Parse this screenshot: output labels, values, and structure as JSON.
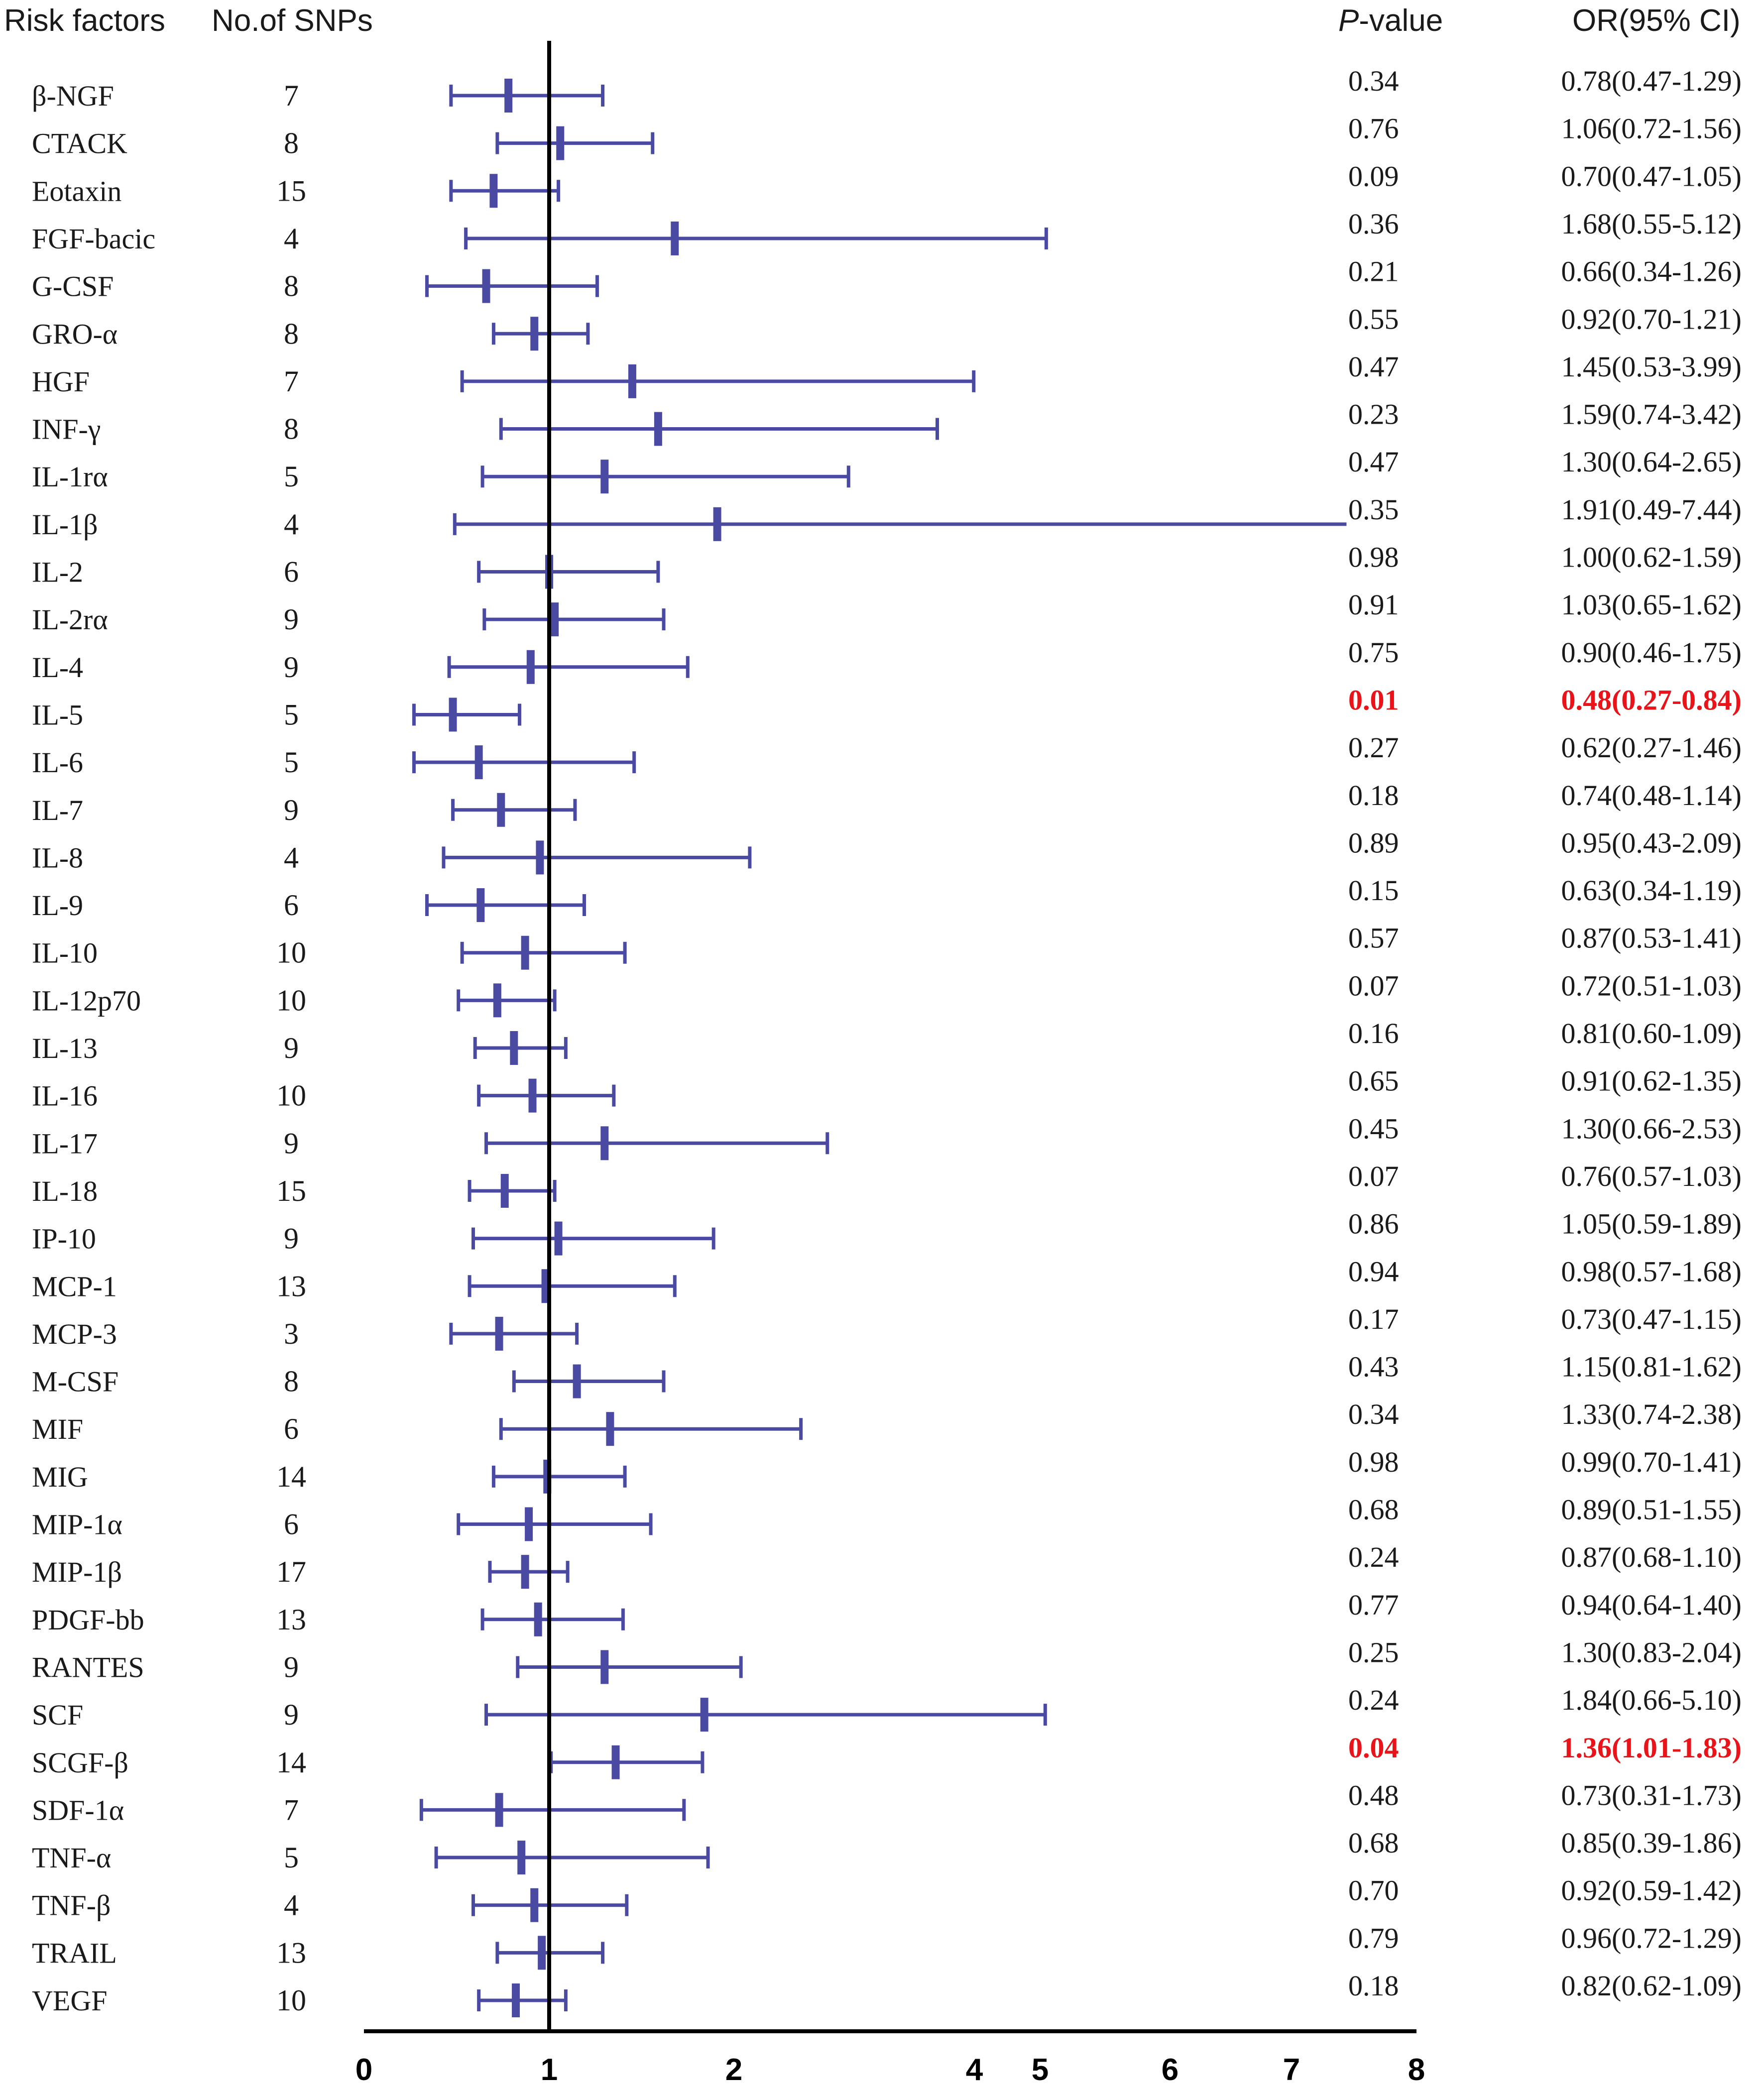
{
  "chart_data": {
    "type": "forest",
    "headers": {
      "factor": "Risk factors",
      "nsnps": "No.of SNPs",
      "pvalue_italic": "P",
      "pvalue_rest": "-value",
      "or": "OR(95% CI)"
    },
    "x_ticks": [
      "0",
      "1",
      "2",
      "4",
      "5",
      "6",
      "7",
      "8"
    ],
    "reference_value": 1,
    "axis_segments": [
      [
        0,
        2.7
      ],
      [
        2.7,
        5.3
      ],
      [
        5.3,
        8
      ]
    ],
    "colors": {
      "marker": "#4b4aa3",
      "significant": "#e8141a",
      "text": "#1a1a1a"
    },
    "rows": [
      {
        "factor": "β-NGF",
        "nsnps": "7",
        "p": "0.34",
        "or_text": "0.78(0.47-1.29)",
        "or": 0.78,
        "lo": 0.47,
        "hi": 1.29,
        "sig": false
      },
      {
        "factor": "CTACK",
        "nsnps": "8",
        "p": "0.76",
        "or_text": "1.06(0.72-1.56)",
        "or": 1.06,
        "lo": 0.72,
        "hi": 1.56,
        "sig": false
      },
      {
        "factor": "Eotaxin",
        "nsnps": "15",
        "p": "0.09",
        "or_text": "0.70(0.47-1.05)",
        "or": 0.7,
        "lo": 0.47,
        "hi": 1.05,
        "sig": false
      },
      {
        "factor": "FGF-bacic",
        "nsnps": "4",
        "p": "0.36",
        "or_text": "1.68(0.55-5.12)",
        "or": 1.68,
        "lo": 0.55,
        "hi": 5.12,
        "sig": false
      },
      {
        "factor": "G-CSF",
        "nsnps": "8",
        "p": "0.21",
        "or_text": "0.66(0.34-1.26)",
        "or": 0.66,
        "lo": 0.34,
        "hi": 1.26,
        "sig": false
      },
      {
        "factor": "GRO-α",
        "nsnps": "8",
        "p": "0.55",
        "or_text": "0.92(0.70-1.21)",
        "or": 0.92,
        "lo": 0.7,
        "hi": 1.21,
        "sig": false
      },
      {
        "factor": "HGF",
        "nsnps": "7",
        "p": "0.47",
        "or_text": "1.45(0.53-3.99)",
        "or": 1.45,
        "lo": 0.53,
        "hi": 3.99,
        "sig": false
      },
      {
        "factor": "INF-γ",
        "nsnps": "8",
        "p": "0.23",
        "or_text": "1.59(0.74-3.42)",
        "or": 1.59,
        "lo": 0.74,
        "hi": 3.42,
        "sig": false
      },
      {
        "factor": "IL-1rα",
        "nsnps": "5",
        "p": "0.47",
        "or_text": "1.30(0.64-2.65)",
        "or": 1.3,
        "lo": 0.64,
        "hi": 2.65,
        "sig": false
      },
      {
        "factor": "IL-1β",
        "nsnps": "4",
        "p": "0.35",
        "or_text": "1.91(0.49-7.44)",
        "or": 1.91,
        "lo": 0.49,
        "hi": 7.44,
        "sig": false
      },
      {
        "factor": "IL-2",
        "nsnps": "6",
        "p": "0.98",
        "or_text": "1.00(0.62-1.59)",
        "or": 1.0,
        "lo": 0.62,
        "hi": 1.59,
        "sig": false
      },
      {
        "factor": "IL-2rα",
        "nsnps": "9",
        "p": "0.91",
        "or_text": "1.03(0.65-1.62)",
        "or": 1.03,
        "lo": 0.65,
        "hi": 1.62,
        "sig": false
      },
      {
        "factor": "IL-4",
        "nsnps": "9",
        "p": "0.75",
        "or_text": "0.90(0.46-1.75)",
        "or": 0.9,
        "lo": 0.46,
        "hi": 1.75,
        "sig": false
      },
      {
        "factor": "IL-5",
        "nsnps": "5",
        "p": "0.01",
        "or_text": "0.48(0.27-0.84)",
        "or": 0.48,
        "lo": 0.27,
        "hi": 0.84,
        "sig": true
      },
      {
        "factor": "IL-6",
        "nsnps": "5",
        "p": "0.27",
        "or_text": "0.62(0.27-1.46)",
        "or": 0.62,
        "lo": 0.27,
        "hi": 1.46,
        "sig": false
      },
      {
        "factor": "IL-7",
        "nsnps": "9",
        "p": "0.18",
        "or_text": "0.74(0.48-1.14)",
        "or": 0.74,
        "lo": 0.48,
        "hi": 1.14,
        "sig": false
      },
      {
        "factor": "IL-8",
        "nsnps": "4",
        "p": "0.89",
        "or_text": "0.95(0.43-2.09)",
        "or": 0.95,
        "lo": 0.43,
        "hi": 2.09,
        "sig": false
      },
      {
        "factor": "IL-9",
        "nsnps": "6",
        "p": "0.15",
        "or_text": "0.63(0.34-1.19)",
        "or": 0.63,
        "lo": 0.34,
        "hi": 1.19,
        "sig": false
      },
      {
        "factor": "IL-10",
        "nsnps": "10",
        "p": "0.57",
        "or_text": "0.87(0.53-1.41)",
        "or": 0.87,
        "lo": 0.53,
        "hi": 1.41,
        "sig": false
      },
      {
        "factor": "IL-12p70",
        "nsnps": "10",
        "p": "0.07",
        "or_text": "0.72(0.51-1.03)",
        "or": 0.72,
        "lo": 0.51,
        "hi": 1.03,
        "sig": false
      },
      {
        "factor": "IL-13",
        "nsnps": "9",
        "p": "0.16",
        "or_text": "0.81(0.60-1.09)",
        "or": 0.81,
        "lo": 0.6,
        "hi": 1.09,
        "sig": false
      },
      {
        "factor": "IL-16",
        "nsnps": "10",
        "p": "0.65",
        "or_text": "0.91(0.62-1.35)",
        "or": 0.91,
        "lo": 0.62,
        "hi": 1.35,
        "sig": false
      },
      {
        "factor": "IL-17",
        "nsnps": "9",
        "p": "0.45",
        "or_text": "1.30(0.66-2.53)",
        "or": 1.3,
        "lo": 0.66,
        "hi": 2.53,
        "sig": false
      },
      {
        "factor": "IL-18",
        "nsnps": "15",
        "p": "0.07",
        "or_text": "0.76(0.57-1.03)",
        "or": 0.76,
        "lo": 0.57,
        "hi": 1.03,
        "sig": false
      },
      {
        "factor": "IP-10",
        "nsnps": "9",
        "p": "0.86",
        "or_text": "1.05(0.59-1.89)",
        "or": 1.05,
        "lo": 0.59,
        "hi": 1.89,
        "sig": false
      },
      {
        "factor": "MCP-1",
        "nsnps": "13",
        "p": "0.94",
        "or_text": "0.98(0.57-1.68)",
        "or": 0.98,
        "lo": 0.57,
        "hi": 1.68,
        "sig": false
      },
      {
        "factor": "MCP-3",
        "nsnps": "3",
        "p": "0.17",
        "or_text": "0.73(0.47-1.15)",
        "or": 0.73,
        "lo": 0.47,
        "hi": 1.15,
        "sig": false
      },
      {
        "factor": "M-CSF",
        "nsnps": "8",
        "p": "0.43",
        "or_text": "1.15(0.81-1.62)",
        "or": 1.15,
        "lo": 0.81,
        "hi": 1.62,
        "sig": false
      },
      {
        "factor": "MIF",
        "nsnps": "6",
        "p": "0.34",
        "or_text": "1.33(0.74-2.38)",
        "or": 1.33,
        "lo": 0.74,
        "hi": 2.38,
        "sig": false
      },
      {
        "factor": "MIG",
        "nsnps": "14",
        "p": "0.98",
        "or_text": "0.99(0.70-1.41)",
        "or": 0.99,
        "lo": 0.7,
        "hi": 1.41,
        "sig": false
      },
      {
        "factor": "MIP-1α",
        "nsnps": "6",
        "p": "0.68",
        "or_text": "0.89(0.51-1.55)",
        "or": 0.89,
        "lo": 0.51,
        "hi": 1.55,
        "sig": false
      },
      {
        "factor": "MIP-1β",
        "nsnps": "17",
        "p": "0.24",
        "or_text": "0.87(0.68-1.10)",
        "or": 0.87,
        "lo": 0.68,
        "hi": 1.1,
        "sig": false
      },
      {
        "factor": "PDGF-bb",
        "nsnps": "13",
        "p": "0.77",
        "or_text": "0.94(0.64-1.40)",
        "or": 0.94,
        "lo": 0.64,
        "hi": 1.4,
        "sig": false
      },
      {
        "factor": "RANTES",
        "nsnps": "9",
        "p": "0.25",
        "or_text": "1.30(0.83-2.04)",
        "or": 1.3,
        "lo": 0.83,
        "hi": 2.04,
        "sig": false
      },
      {
        "factor": "SCF",
        "nsnps": "9",
        "p": "0.24",
        "or_text": "1.84(0.66-5.10)",
        "or": 1.84,
        "lo": 0.66,
        "hi": 5.1,
        "sig": false
      },
      {
        "factor": "SCGF-β",
        "nsnps": "14",
        "p": "0.04",
        "or_text": "1.36(1.01-1.83)",
        "or": 1.36,
        "lo": 1.01,
        "hi": 1.83,
        "sig": true
      },
      {
        "factor": "SDF-1α",
        "nsnps": "7",
        "p": "0.48",
        "or_text": "0.73(0.31-1.73)",
        "or": 0.73,
        "lo": 0.31,
        "hi": 1.73,
        "sig": false
      },
      {
        "factor": "TNF-α",
        "nsnps": "5",
        "p": "0.68",
        "or_text": "0.85(0.39-1.86)",
        "or": 0.85,
        "lo": 0.39,
        "hi": 1.86,
        "sig": false
      },
      {
        "factor": "TNF-β",
        "nsnps": "4",
        "p": "0.70",
        "or_text": "0.92(0.59-1.42)",
        "or": 0.92,
        "lo": 0.59,
        "hi": 1.42,
        "sig": false
      },
      {
        "factor": "TRAIL",
        "nsnps": "13",
        "p": "0.79",
        "or_text": "0.96(0.72-1.29)",
        "or": 0.96,
        "lo": 0.72,
        "hi": 1.29,
        "sig": false
      },
      {
        "factor": "VEGF",
        "nsnps": "10",
        "p": "0.18",
        "or_text": "0.82(0.62-1.09)",
        "or": 0.82,
        "lo": 0.62,
        "hi": 1.09,
        "sig": false
      }
    ]
  }
}
